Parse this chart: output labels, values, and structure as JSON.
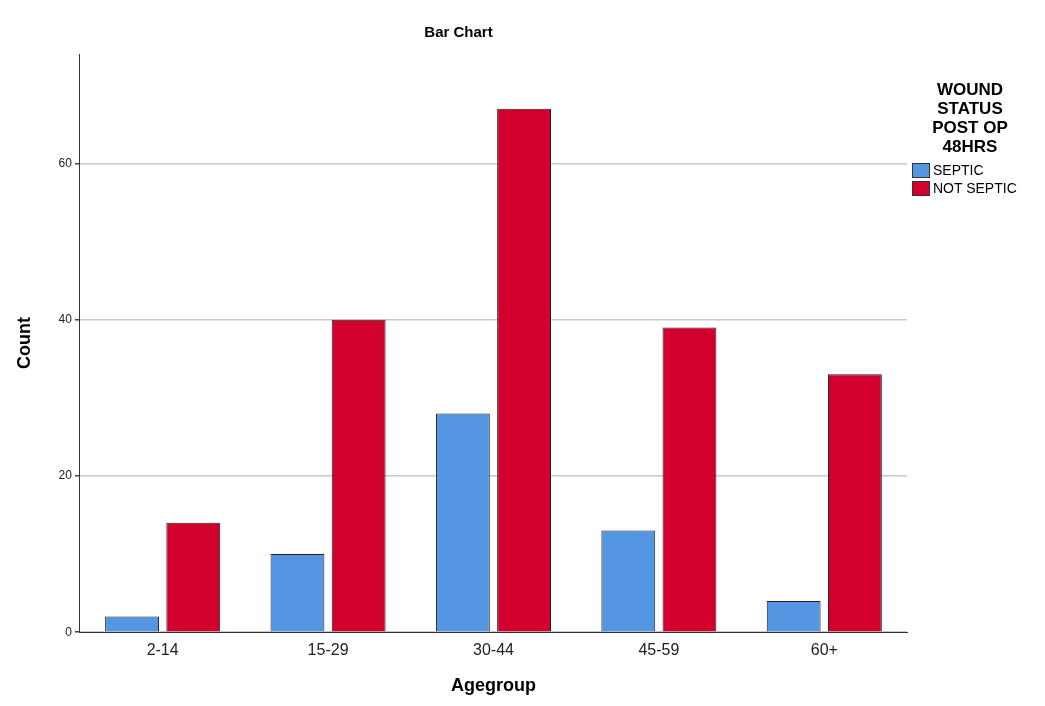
{
  "chart_data": {
    "type": "bar",
    "title": "Bar Chart",
    "xlabel": "Agegroup",
    "ylabel": "Count",
    "legend_title": "WOUND STATUS POST OP 48HRS",
    "categories": [
      "2-14",
      "15-29",
      "30-44",
      "45-59",
      "60+"
    ],
    "series": [
      {
        "name": "SEPTIC",
        "color": "#5596e3",
        "values": [
          2,
          10,
          28,
          13,
          4
        ]
      },
      {
        "name": "NOT SEPTIC",
        "color": "#d2002d",
        "values": [
          14,
          40,
          67,
          39,
          33
        ]
      }
    ],
    "ylim": [
      0,
      74
    ],
    "yticks": [
      0,
      20,
      40,
      60
    ],
    "grid": "y",
    "legend": "top right"
  }
}
